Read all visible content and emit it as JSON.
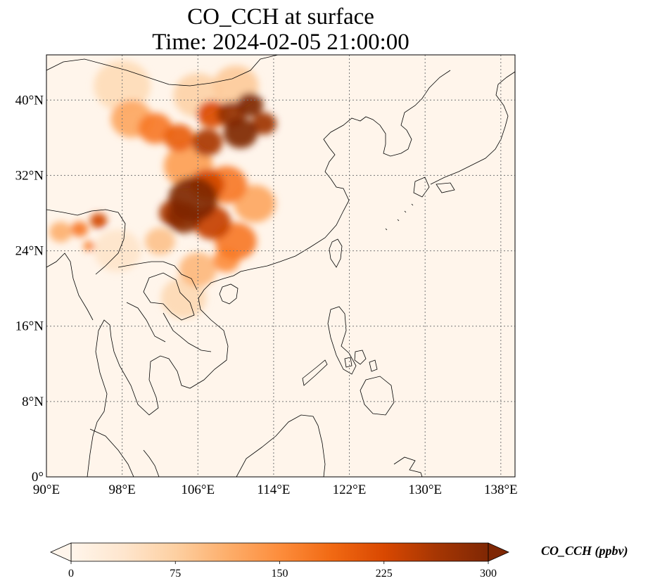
{
  "title": {
    "line1": "CO_CCH at surface",
    "line2": "Time: 2024-02-05 21:00:00"
  },
  "map": {
    "lon_range": [
      90,
      139.5
    ],
    "lat_range": [
      0,
      44.8
    ],
    "lon_ticks": [
      {
        "value": 90,
        "label": "90°E"
      },
      {
        "value": 98,
        "label": "98°E"
      },
      {
        "value": 106,
        "label": "106°E"
      },
      {
        "value": 114,
        "label": "114°E"
      },
      {
        "value": 122,
        "label": "122°E"
      },
      {
        "value": 130,
        "label": "130°E"
      },
      {
        "value": 138,
        "label": "138°E"
      }
    ],
    "lat_ticks": [
      {
        "value": 0,
        "label": "0°"
      },
      {
        "value": 8,
        "label": "8°N"
      },
      {
        "value": 16,
        "label": "16°N"
      },
      {
        "value": 24,
        "label": "24°N"
      },
      {
        "value": 32,
        "label": "32°N"
      },
      {
        "value": 40,
        "label": "40°N"
      }
    ],
    "gridlines": true,
    "background_color": "#fff5eb",
    "plume": [
      {
        "lon": 105.5,
        "lat": 29.5,
        "value": 300,
        "spread": 2.6
      },
      {
        "lon": 104.5,
        "lat": 27.5,
        "value": 290,
        "spread": 1.8
      },
      {
        "lon": 107.5,
        "lat": 27.0,
        "value": 240,
        "spread": 2.0
      },
      {
        "lon": 103.5,
        "lat": 28.0,
        "value": 260,
        "spread": 1.6
      },
      {
        "lon": 107.0,
        "lat": 31.0,
        "value": 230,
        "spread": 1.8
      },
      {
        "lon": 110.5,
        "lat": 36.5,
        "value": 300,
        "spread": 1.8
      },
      {
        "lon": 111.5,
        "lat": 39.5,
        "value": 300,
        "spread": 1.4
      },
      {
        "lon": 109.5,
        "lat": 38.5,
        "value": 280,
        "spread": 1.5
      },
      {
        "lon": 107.0,
        "lat": 35.5,
        "value": 260,
        "spread": 1.6
      },
      {
        "lon": 113.0,
        "lat": 37.5,
        "value": 270,
        "spread": 1.3
      },
      {
        "lon": 104.0,
        "lat": 36.0,
        "value": 200,
        "spread": 1.6
      },
      {
        "lon": 101.5,
        "lat": 37.0,
        "value": 170,
        "spread": 1.8
      },
      {
        "lon": 107.5,
        "lat": 38.5,
        "value": 220,
        "spread": 1.6
      },
      {
        "lon": 99.0,
        "lat": 38.0,
        "value": 120,
        "spread": 2.2
      },
      {
        "lon": 105.0,
        "lat": 33.0,
        "value": 130,
        "spread": 2.6
      },
      {
        "lon": 109.0,
        "lat": 31.0,
        "value": 170,
        "spread": 2.2
      },
      {
        "lon": 110.0,
        "lat": 25.0,
        "value": 170,
        "spread": 2.2
      },
      {
        "lon": 109.0,
        "lat": 23.0,
        "value": 150,
        "spread": 1.4
      },
      {
        "lon": 112.0,
        "lat": 29.0,
        "value": 120,
        "spread": 2.2
      },
      {
        "lon": 106.0,
        "lat": 22.0,
        "value": 100,
        "spread": 2.0
      },
      {
        "lon": 104.5,
        "lat": 19.0,
        "value": 60,
        "spread": 2.4
      },
      {
        "lon": 106.0,
        "lat": 40.5,
        "value": 70,
        "spread": 2.6
      },
      {
        "lon": 98.0,
        "lat": 41.5,
        "value": 55,
        "spread": 3.0
      },
      {
        "lon": 110.0,
        "lat": 41.5,
        "value": 80,
        "spread": 2.4
      },
      {
        "lon": 102.0,
        "lat": 25.0,
        "value": 90,
        "spread": 1.6
      },
      {
        "lon": 95.5,
        "lat": 27.2,
        "value": 230,
        "spread": 0.9
      },
      {
        "lon": 93.5,
        "lat": 26.3,
        "value": 170,
        "spread": 0.9
      },
      {
        "lon": 91.5,
        "lat": 26.0,
        "value": 110,
        "spread": 1.2
      },
      {
        "lon": 94.5,
        "lat": 24.5,
        "value": 160,
        "spread": 0.6
      },
      {
        "lon": 97.5,
        "lat": 24.0,
        "value": 40,
        "spread": 2.5
      }
    ]
  },
  "colorbar": {
    "min": 0,
    "max": 300,
    "ticks": [
      "0",
      "75",
      "150",
      "225",
      "300"
    ],
    "label": "CO_CCH (ppbv)",
    "stops": [
      "#fff5eb",
      "#fee6ce",
      "#fdd0a2",
      "#fdae6b",
      "#fd8d3c",
      "#f16913",
      "#d94801",
      "#a63603",
      "#7f2704"
    ]
  }
}
